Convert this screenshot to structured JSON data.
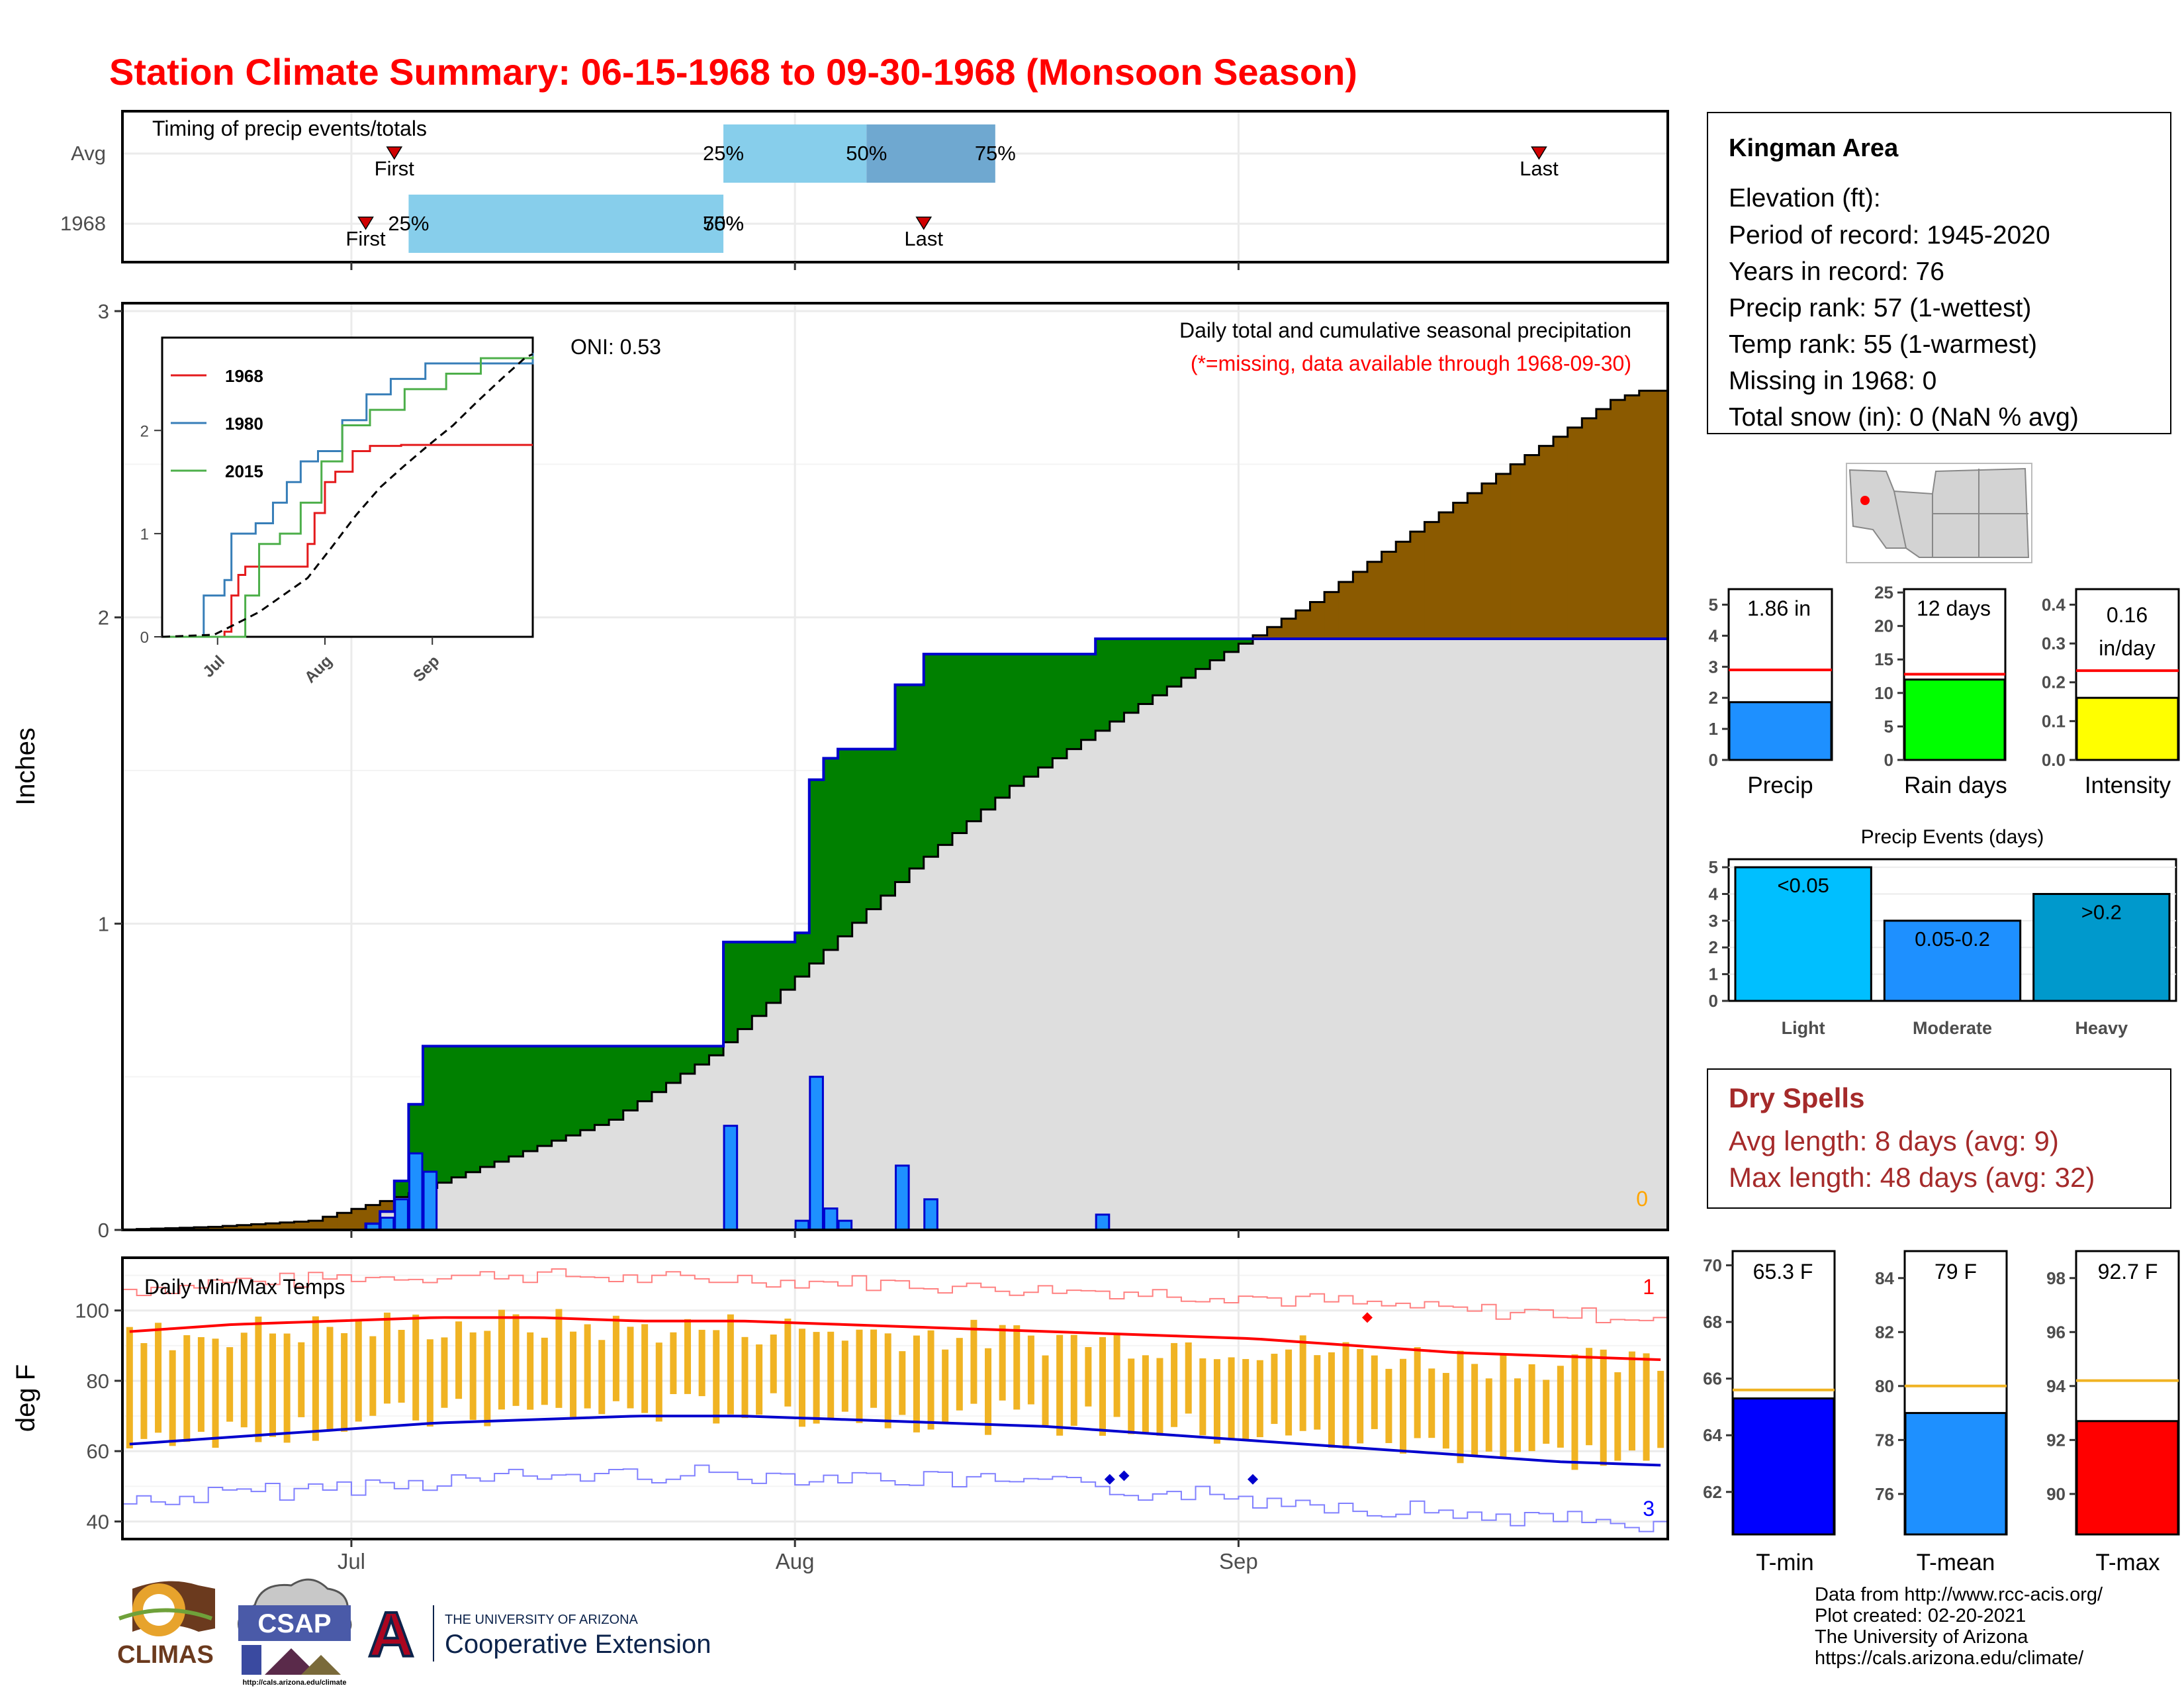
{
  "page": {
    "title": "Station Climate Summary: 06-15-1968 to 09-30-1968 (Monsoon Season)",
    "title_color": "#ff0000"
  },
  "timing_panel": {
    "label": "Timing of precip events/totals",
    "row_labels": [
      "Avg",
      "1968"
    ],
    "avg": {
      "first": "First",
      "last": "Last",
      "pct_25": "25%",
      "pct_50": "50%",
      "pct_75": "75%"
    },
    "year": {
      "first": "First",
      "last": "Last",
      "pct_25": "25%",
      "pct_50": "50%",
      "pct_75": "75%"
    },
    "avg_dates": {
      "first": "1968-07-04",
      "p25": "1968-07-27",
      "p50": "1968-08-06",
      "p75": "1968-08-15",
      "last": "1968-09-22"
    },
    "year_dates": {
      "first": "1968-07-02",
      "p25": "1968-07-05",
      "p50": "1968-07-27",
      "p75": "1968-07-27",
      "last": "1968-08-10"
    }
  },
  "precip_panel": {
    "ylabel": "Inches",
    "oni": "ONI: 0.53",
    "title": "Daily total and cumulative seasonal precipitation",
    "note": "(*=missing, data available through 1968-09-30)",
    "missing_count": "0",
    "x_ticks": [
      "Jul",
      "Aug",
      "Sep"
    ],
    "y_ticks": [
      "0",
      "1",
      "2",
      "3"
    ]
  },
  "inset": {
    "legend": [
      "1968",
      "1980",
      "2015"
    ],
    "colors": [
      "#e41a1c",
      "#377eb8",
      "#4daf4a"
    ],
    "x_ticks": [
      "Jul",
      "Aug",
      "Sep"
    ],
    "y_ticks": [
      "0",
      "1",
      "2"
    ]
  },
  "temp_panel": {
    "label": "Daily Min/Max Temps",
    "ylabel": "deg F",
    "y_ticks": [
      "40",
      "60",
      "80",
      "100"
    ],
    "x_ticks": [
      "Jul",
      "Aug",
      "Sep"
    ],
    "record_high_count": "1",
    "record_low_count": "3"
  },
  "station_info": {
    "name": "Kingman Area",
    "lines": [
      "Elevation (ft):",
      "Period of record: 1945-2020",
      "Years in record: 76",
      "Precip rank: 57 (1-wettest)",
      "Temp rank: 55 (1-warmest)",
      "Missing in 1968: 0",
      "Total snow (in): 0 (NaN % avg)"
    ]
  },
  "precip_bars": {
    "precip": {
      "label": "Precip",
      "value_label": "1.86 in",
      "ticks": [
        "0",
        "1",
        "2",
        "3",
        "4",
        "5"
      ]
    },
    "rain_days": {
      "label": "Rain days",
      "value_label": "12 days",
      "ticks": [
        "0",
        "5",
        "10",
        "15",
        "20",
        "25"
      ]
    },
    "intensity": {
      "label": "Intensity",
      "value_label_1": "0.16",
      "value_label_2": "in/day",
      "ticks": [
        "0.0",
        "0.1",
        "0.2",
        "0.3",
        "0.4"
      ]
    }
  },
  "precip_events": {
    "title": "Precip Events (days)",
    "categories": [
      "Light",
      "Moderate",
      "Heavy"
    ],
    "bar_labels": [
      "<0.05",
      "0.05-0.2",
      ">0.2"
    ],
    "ticks": [
      "0",
      "1",
      "2",
      "3",
      "4",
      "5"
    ]
  },
  "dry_spells": {
    "title": "Dry Spells",
    "avg": "Avg length: 8 days (avg: 9)",
    "max": "Max length: 48 days (avg: 32)"
  },
  "temp_bars": {
    "tmin": {
      "label": "T-min",
      "value_label": "65.3 F",
      "ticks": [
        "62",
        "64",
        "66",
        "68",
        "70"
      ]
    },
    "tmean": {
      "label": "T-mean",
      "value_label": "79 F",
      "ticks": [
        "76",
        "78",
        "80",
        "82",
        "84"
      ]
    },
    "tmax": {
      "label": "T-max",
      "value_label": "92.7 F",
      "ticks": [
        "90",
        "92",
        "94",
        "96",
        "98"
      ]
    }
  },
  "footer": {
    "lines": [
      "Data from http://www.rcc-acis.org/",
      "Plot created: 02-20-2021",
      "The University of Arizona",
      "https://cals.arizona.edu/climate/"
    ],
    "logo_climas": "CLIMAS",
    "logo_csap": "CSAP",
    "logo_csap_url": "http://cals.arizona.edu/climate",
    "logo_ua_line1": "THE UNIVERSITY OF ARIZONA",
    "logo_ua_line2": "Cooperative Extension",
    "logo_ua_letter": "A"
  },
  "chart_data": [
    {
      "type": "area",
      "title": "Daily total and cumulative seasonal precipitation",
      "ylabel": "Inches",
      "ylim": [
        0,
        3
      ],
      "xlim": [
        "1968-06-15",
        "1968-09-30"
      ],
      "series": [
        {
          "name": "1968",
          "daily": [
            {
              "x": "1968-07-02",
              "y": 0.02
            },
            {
              "x": "1968-07-03",
              "y": 0.04
            },
            {
              "x": "1968-07-04",
              "y": 0.1
            },
            {
              "x": "1968-07-05",
              "y": 0.25
            },
            {
              "x": "1968-07-06",
              "y": 0.19
            },
            {
              "x": "1968-07-27",
              "y": 0.34
            },
            {
              "x": "1968-08-01",
              "y": 0.03
            },
            {
              "x": "1968-08-02",
              "y": 0.5
            },
            {
              "x": "1968-08-03",
              "y": 0.07
            },
            {
              "x": "1968-08-04",
              "y": 0.03
            },
            {
              "x": "1968-08-08",
              "y": 0.21
            },
            {
              "x": "1968-08-10",
              "y": 0.1
            },
            {
              "x": "1968-08-22",
              "y": 0.05
            }
          ]
        },
        {
          "name": "avg",
          "cumulative": [
            {
              "x": "1968-06-15",
              "y": 0.0
            },
            {
              "x": "1968-06-22",
              "y": 0.01
            },
            {
              "x": "1968-06-29",
              "y": 0.03
            },
            {
              "x": "1968-07-06",
              "y": 0.12
            },
            {
              "x": "1968-07-13",
              "y": 0.24
            },
            {
              "x": "1968-07-20",
              "y": 0.36
            },
            {
              "x": "1968-07-27",
              "y": 0.57
            },
            {
              "x": "1968-08-03",
              "y": 0.87
            },
            {
              "x": "1968-08-10",
              "y": 1.18
            },
            {
              "x": "1968-08-17",
              "y": 1.45
            },
            {
              "x": "1968-08-24",
              "y": 1.66
            },
            {
              "x": "1968-08-31",
              "y": 1.86
            },
            {
              "x": "1968-09-07",
              "y": 2.05
            },
            {
              "x": "1968-09-14",
              "y": 2.28
            },
            {
              "x": "1968-09-21",
              "y": 2.5
            },
            {
              "x": "1968-09-28",
              "y": 2.71
            },
            {
              "x": "1968-09-30",
              "y": 2.74
            }
          ]
        }
      ]
    },
    {
      "type": "line",
      "inset": true,
      "x_ticks": [
        "Jul",
        "Aug",
        "Sep"
      ],
      "ylim": [
        0,
        2.9
      ],
      "series": [
        {
          "name": "1968",
          "values": [
            [
              0,
              0
            ],
            [
              18,
              0.05
            ],
            [
              20,
              0.4
            ],
            [
              22,
              0.6
            ],
            [
              24,
              0.68
            ],
            [
              42,
              0.9
            ],
            [
              44,
              1.2
            ],
            [
              47,
              1.5
            ],
            [
              50,
              1.6
            ],
            [
              55,
              1.8
            ],
            [
              60,
              1.85
            ],
            [
              69,
              1.86
            ],
            [
              107,
              1.86
            ]
          ]
        },
        {
          "name": "1980",
          "values": [
            [
              0,
              0
            ],
            [
              10,
              0
            ],
            [
              12,
              0.4
            ],
            [
              18,
              0.55
            ],
            [
              20,
              1.0
            ],
            [
              27,
              1.1
            ],
            [
              32,
              1.3
            ],
            [
              36,
              1.5
            ],
            [
              40,
              1.7
            ],
            [
              45,
              1.8
            ],
            [
              52,
              2.1
            ],
            [
              59,
              2.35
            ],
            [
              66,
              2.5
            ],
            [
              76,
              2.65
            ],
            [
              107,
              2.75
            ]
          ]
        },
        {
          "name": "2015",
          "values": [
            [
              0,
              0
            ],
            [
              22,
              0
            ],
            [
              24,
              0.4
            ],
            [
              28,
              0.9
            ],
            [
              34,
              1.0
            ],
            [
              40,
              1.3
            ],
            [
              46,
              1.7
            ],
            [
              52,
              2.05
            ],
            [
              60,
              2.2
            ],
            [
              70,
              2.4
            ],
            [
              82,
              2.55
            ],
            [
              92,
              2.7
            ],
            [
              107,
              2.72
            ]
          ]
        },
        {
          "name": "avg",
          "values": [
            [
              0,
              0
            ],
            [
              15,
              0.02
            ],
            [
              21,
              0.12
            ],
            [
              28,
              0.24
            ],
            [
              42,
              0.57
            ],
            [
              49,
              0.87
            ],
            [
              56,
              1.18
            ],
            [
              63,
              1.45
            ],
            [
              70,
              1.66
            ],
            [
              77,
              1.86
            ],
            [
              84,
              2.05
            ],
            [
              91,
              2.28
            ],
            [
              98,
              2.5
            ],
            [
              105,
              2.71
            ],
            [
              107,
              2.74
            ]
          ]
        }
      ]
    },
    {
      "type": "bar",
      "title": "Daily Min/Max Temps",
      "ylabel": "deg F",
      "ylim": [
        35,
        115
      ],
      "series": [
        {
          "name": "avg_max",
          "values": [
            94,
            96,
            97,
            98,
            98,
            97,
            97,
            96,
            95,
            94,
            93,
            92,
            90,
            88,
            87,
            86
          ]
        },
        {
          "name": "avg_min",
          "values": [
            62,
            64,
            66,
            68,
            69,
            70,
            70,
            69,
            68,
            67,
            65,
            63,
            61,
            59,
            57,
            56
          ]
        }
      ]
    },
    {
      "type": "bar",
      "categories": [
        "Precip",
        "Rain days",
        "Intensity"
      ],
      "values": [
        1.86,
        12,
        0.16
      ],
      "averages": [
        2.9,
        12.8,
        0.23
      ],
      "ylims": [
        [
          0,
          5.5
        ],
        [
          0,
          25.5
        ],
        [
          0,
          0.44
        ]
      ]
    },
    {
      "type": "bar",
      "title": "Precip Events (days)",
      "categories": [
        "Light",
        "Moderate",
        "Heavy"
      ],
      "values": [
        5,
        3,
        4
      ],
      "ylim": [
        0,
        5.3
      ]
    },
    {
      "type": "bar",
      "categories": [
        "T-min",
        "T-mean",
        "T-max"
      ],
      "values": [
        65.3,
        79,
        92.7
      ],
      "averages": [
        65.6,
        80,
        94.2
      ],
      "ylims": [
        [
          60.5,
          70.5
        ],
        [
          74.5,
          85
        ],
        [
          88.5,
          99
        ]
      ]
    }
  ]
}
